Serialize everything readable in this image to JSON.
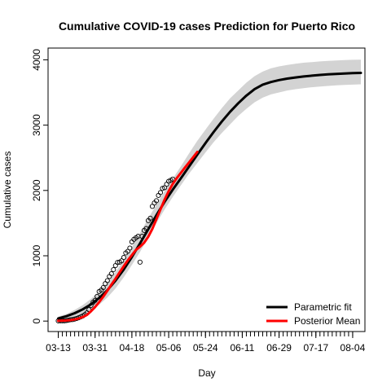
{
  "chart_data": {
    "type": "line",
    "title": "Cumulative COVID-19 cases Prediction for Puerto Rico",
    "xlabel": "Day",
    "ylabel": "Cumulative cases",
    "x_tick_labels": [
      "03-13",
      "03-31",
      "04-18",
      "05-06",
      "05-24",
      "06-11",
      "06-29",
      "07-17",
      "08-04"
    ],
    "x_tick_days": [
      0,
      18,
      36,
      54,
      72,
      90,
      108,
      126,
      144
    ],
    "xlim": [
      -5,
      150
    ],
    "ylim": [
      -160,
      4180
    ],
    "y_ticks": [
      0,
      1000,
      2000,
      3000,
      4000
    ],
    "grid": false,
    "legend": {
      "placement": "bottom-right",
      "entries": [
        {
          "label": "Parametric fit",
          "color": "#000000"
        },
        {
          "label": "Posterior Mean",
          "color": "#ff0000"
        }
      ]
    },
    "colors": {
      "band": "#d3d3d3",
      "parametric": "#000000",
      "posterior": "#ff0000",
      "observed": "#000000"
    },
    "observed": {
      "name": "observed",
      "x": [
        0,
        1,
        2,
        3,
        4,
        5,
        6,
        7,
        8,
        9,
        10,
        11,
        12,
        13,
        14,
        15,
        16,
        17,
        18,
        19,
        20,
        21,
        22,
        23,
        24,
        25,
        26,
        27,
        28,
        29,
        30,
        31,
        32,
        33,
        34,
        35,
        36,
        37,
        38,
        39,
        40,
        41,
        42,
        43,
        44,
        45,
        46,
        47,
        48,
        49,
        50,
        51,
        52,
        53,
        54,
        55,
        56
      ],
      "y": [
        3,
        5,
        5,
        5,
        8,
        14,
        21,
        23,
        31,
        39,
        51,
        64,
        79,
        100,
        127,
        174,
        239,
        286,
        316,
        378,
        452,
        475,
        513,
        573,
        620,
        683,
        725,
        788,
        850,
        897,
        903,
        923,
        974,
        1043,
        1068,
        1118,
        1213,
        1252,
        1276,
        1298,
        903,
        1298,
        1389,
        1416,
        1539,
        1575,
        1757,
        1808,
        1843,
        1924,
        1968,
        2031,
        2042,
        2095,
        2141,
        2156,
        2173
      ]
    },
    "series": [
      {
        "name": "Parametric fit",
        "x": [
          0,
          4,
          8,
          12,
          16,
          20,
          24,
          28,
          32,
          36,
          40,
          44,
          48,
          52,
          56,
          60,
          64,
          68,
          72,
          76,
          80,
          84,
          88,
          92,
          96,
          100,
          104,
          108,
          112,
          116,
          120,
          124,
          128,
          132,
          136,
          140,
          144,
          148
        ],
        "y": [
          40,
          75,
          121,
          180,
          257,
          354,
          474,
          620,
          790,
          981,
          1189,
          1405,
          1621,
          1827,
          2013,
          2187,
          2368,
          2548,
          2725,
          2895,
          3055,
          3203,
          3335,
          3452,
          3552,
          3620,
          3660,
          3690,
          3712,
          3730,
          3745,
          3757,
          3768,
          3777,
          3784,
          3791,
          3796,
          3800
        ]
      },
      {
        "name": "Posterior Mean",
        "x": [
          0,
          2,
          4,
          6,
          8,
          10,
          12,
          14,
          16,
          18,
          20,
          22,
          24,
          26,
          28,
          30,
          32,
          34,
          36,
          38,
          40,
          42,
          44,
          46,
          48,
          50,
          52,
          54,
          56,
          58,
          60,
          62,
          64,
          66,
          68
        ],
        "y": [
          5,
          7,
          10,
          15,
          25,
          40,
          62,
          95,
          150,
          215,
          290,
          375,
          465,
          560,
          650,
          745,
          840,
          930,
          1010,
          1090,
          1140,
          1200,
          1290,
          1410,
          1560,
          1710,
          1860,
          1990,
          2100,
          2190,
          2270,
          2350,
          2430,
          2510,
          2590
        ]
      }
    ],
    "band": {
      "x": [
        0,
        4,
        8,
        12,
        16,
        20,
        24,
        28,
        32,
        36,
        40,
        44,
        48,
        52,
        56,
        60,
        64,
        68,
        72,
        76,
        80,
        84,
        88,
        92,
        96,
        100,
        104,
        108,
        112,
        116,
        120,
        124,
        128,
        132,
        136,
        140,
        144,
        148
      ],
      "lower": [
        0,
        20,
        50,
        95,
        160,
        250,
        360,
        500,
        670,
        860,
        1060,
        1280,
        1500,
        1710,
        1900,
        2080,
        2260,
        2420,
        2580,
        2740,
        2880,
        3010,
        3140,
        3250,
        3350,
        3420,
        3470,
        3500,
        3530,
        3550,
        3565,
        3580,
        3590,
        3600,
        3610,
        3615,
        3620,
        3625
      ],
      "upper": [
        70,
        110,
        170,
        245,
        340,
        455,
        590,
        750,
        935,
        1135,
        1350,
        1570,
        1785,
        1990,
        2180,
        2370,
        2570,
        2760,
        2930,
        3100,
        3260,
        3410,
        3530,
        3650,
        3750,
        3820,
        3870,
        3900,
        3920,
        3940,
        3955,
        3965,
        3975,
        3983,
        3990,
        3995,
        4000,
        4003
      ]
    }
  }
}
